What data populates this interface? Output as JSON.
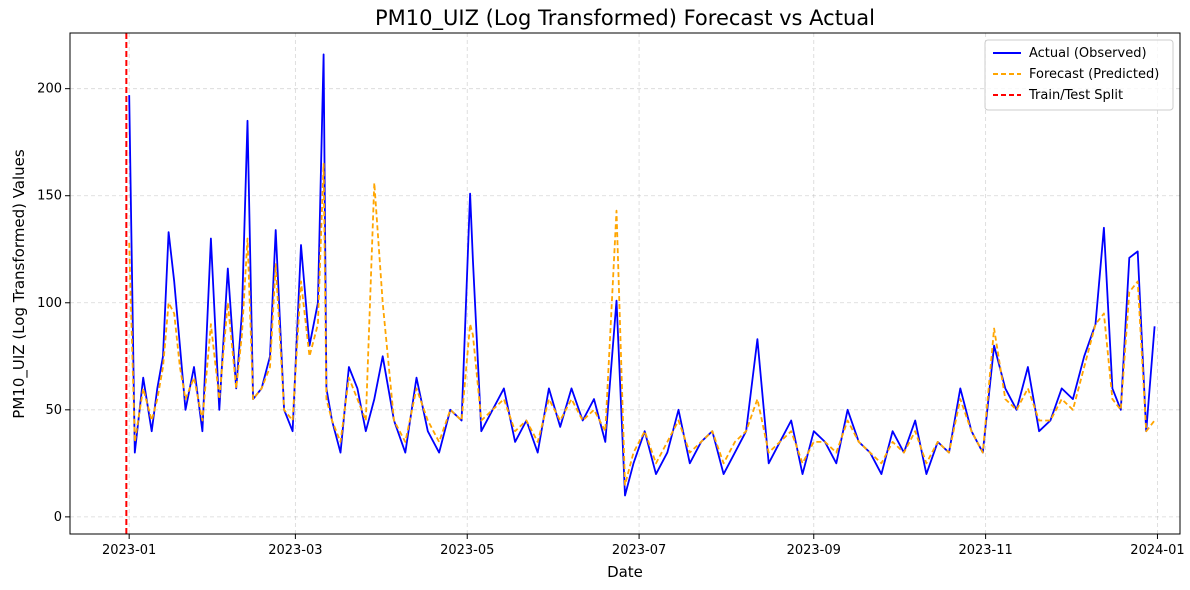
{
  "chart_data": {
    "type": "line",
    "title": "PM10_UIZ (Log Transformed) Forecast vs Actual",
    "xlabel": "Date",
    "ylabel": "PM10_UIZ (Log Transformed) Values",
    "xlim": [
      "2022-12-11",
      "2024-01-09"
    ],
    "ylim": [
      -8,
      226
    ],
    "x_ticks": [
      "2023-01",
      "2023-03",
      "2023-05",
      "2023-07",
      "2023-09",
      "2023-11",
      "2024-01"
    ],
    "y_ticks": [
      0,
      50,
      100,
      150,
      200
    ],
    "grid": true,
    "legend_position": "upper-right",
    "split_date": "2022-12-31",
    "series": [
      {
        "name": "Actual (Observed)",
        "color": "#0000ff",
        "style": "solid",
        "x": [
          "2023-01-01",
          "2023-01-03",
          "2023-01-06",
          "2023-01-09",
          "2023-01-11",
          "2023-01-13",
          "2023-01-15",
          "2023-01-17",
          "2023-01-19",
          "2023-01-21",
          "2023-01-24",
          "2023-01-27",
          "2023-01-30",
          "2023-02-02",
          "2023-02-05",
          "2023-02-08",
          "2023-02-10",
          "2023-02-12",
          "2023-02-14",
          "2023-02-17",
          "2023-02-20",
          "2023-02-22",
          "2023-02-25",
          "2023-02-28",
          "2023-03-03",
          "2023-03-06",
          "2023-03-09",
          "2023-03-11",
          "2023-03-12",
          "2023-03-14",
          "2023-03-17",
          "2023-03-20",
          "2023-03-23",
          "2023-03-26",
          "2023-03-29",
          "2023-04-01",
          "2023-04-05",
          "2023-04-09",
          "2023-04-13",
          "2023-04-17",
          "2023-04-21",
          "2023-04-25",
          "2023-04-29",
          "2023-05-02",
          "2023-05-03",
          "2023-05-06",
          "2023-05-10",
          "2023-05-14",
          "2023-05-18",
          "2023-05-22",
          "2023-05-26",
          "2023-05-30",
          "2023-06-03",
          "2023-06-07",
          "2023-06-11",
          "2023-06-15",
          "2023-06-19",
          "2023-06-23",
          "2023-06-26",
          "2023-06-29",
          "2023-07-03",
          "2023-07-07",
          "2023-07-11",
          "2023-07-15",
          "2023-07-19",
          "2023-07-23",
          "2023-07-27",
          "2023-07-31",
          "2023-08-04",
          "2023-08-08",
          "2023-08-12",
          "2023-08-16",
          "2023-08-20",
          "2023-08-24",
          "2023-08-28",
          "2023-09-01",
          "2023-09-05",
          "2023-09-09",
          "2023-09-13",
          "2023-09-17",
          "2023-09-21",
          "2023-09-25",
          "2023-09-29",
          "2023-10-03",
          "2023-10-07",
          "2023-10-11",
          "2023-10-15",
          "2023-10-19",
          "2023-10-23",
          "2023-10-27",
          "2023-10-31",
          "2023-11-04",
          "2023-11-08",
          "2023-11-12",
          "2023-11-16",
          "2023-11-20",
          "2023-11-24",
          "2023-11-28",
          "2023-12-02",
          "2023-12-06",
          "2023-12-10",
          "2023-12-13",
          "2023-12-16",
          "2023-12-19",
          "2023-12-22",
          "2023-12-25",
          "2023-12-28",
          "2023-12-31"
        ],
        "y": [
          197,
          30,
          65,
          40,
          60,
          75,
          133,
          110,
          80,
          50,
          70,
          40,
          130,
          50,
          116,
          60,
          95,
          185,
          55,
          60,
          75,
          134,
          50,
          40,
          127,
          80,
          100,
          216,
          60,
          45,
          30,
          70,
          60,
          40,
          55,
          75,
          45,
          30,
          65,
          40,
          30,
          50,
          45,
          151,
          120,
          40,
          50,
          60,
          35,
          45,
          30,
          60,
          42,
          60,
          45,
          55,
          35,
          101,
          10,
          25,
          40,
          20,
          30,
          50,
          25,
          35,
          40,
          20,
          30,
          40,
          83,
          25,
          35,
          45,
          20,
          40,
          35,
          25,
          50,
          35,
          30,
          20,
          40,
          30,
          45,
          20,
          35,
          30,
          60,
          40,
          30,
          80,
          60,
          50,
          70,
          40,
          45,
          60,
          55,
          75,
          90,
          135,
          60,
          50,
          121,
          124,
          40,
          89
        ]
      },
      {
        "name": "Forecast (Predicted)",
        "color": "#ffa500",
        "style": "dashed",
        "x": [
          "2023-01-01",
          "2023-01-03",
          "2023-01-06",
          "2023-01-09",
          "2023-01-11",
          "2023-01-13",
          "2023-01-15",
          "2023-01-17",
          "2023-01-19",
          "2023-01-21",
          "2023-01-24",
          "2023-01-27",
          "2023-01-30",
          "2023-02-02",
          "2023-02-05",
          "2023-02-08",
          "2023-02-10",
          "2023-02-12",
          "2023-02-14",
          "2023-02-17",
          "2023-02-20",
          "2023-02-22",
          "2023-02-25",
          "2023-02-28",
          "2023-03-03",
          "2023-03-06",
          "2023-03-09",
          "2023-03-11",
          "2023-03-12",
          "2023-03-14",
          "2023-03-17",
          "2023-03-20",
          "2023-03-23",
          "2023-03-26",
          "2023-03-29",
          "2023-04-01",
          "2023-04-05",
          "2023-04-09",
          "2023-04-13",
          "2023-04-17",
          "2023-04-21",
          "2023-04-25",
          "2023-04-29",
          "2023-05-02",
          "2023-05-03",
          "2023-05-06",
          "2023-05-10",
          "2023-05-14",
          "2023-05-18",
          "2023-05-22",
          "2023-05-26",
          "2023-05-30",
          "2023-06-03",
          "2023-06-07",
          "2023-06-11",
          "2023-06-15",
          "2023-06-19",
          "2023-06-23",
          "2023-06-26",
          "2023-06-29",
          "2023-07-03",
          "2023-07-07",
          "2023-07-11",
          "2023-07-15",
          "2023-07-19",
          "2023-07-23",
          "2023-07-27",
          "2023-07-31",
          "2023-08-04",
          "2023-08-08",
          "2023-08-12",
          "2023-08-16",
          "2023-08-20",
          "2023-08-24",
          "2023-08-28",
          "2023-09-01",
          "2023-09-05",
          "2023-09-09",
          "2023-09-13",
          "2023-09-17",
          "2023-09-21",
          "2023-09-25",
          "2023-09-29",
          "2023-10-03",
          "2023-10-07",
          "2023-10-11",
          "2023-10-15",
          "2023-10-19",
          "2023-10-23",
          "2023-10-27",
          "2023-10-31",
          "2023-11-04",
          "2023-11-08",
          "2023-11-12",
          "2023-11-16",
          "2023-11-20",
          "2023-11-24",
          "2023-11-28",
          "2023-12-02",
          "2023-12-06",
          "2023-12-10",
          "2023-12-13",
          "2023-12-16",
          "2023-12-19",
          "2023-12-22",
          "2023-12-25",
          "2023-12-28",
          "2023-12-31"
        ],
        "y": [
          128,
          35,
          60,
          45,
          55,
          70,
          100,
          95,
          70,
          55,
          65,
          45,
          90,
          55,
          100,
          60,
          85,
          130,
          55,
          60,
          70,
          118,
          50,
          45,
          110,
          75,
          90,
          165,
          55,
          45,
          35,
          65,
          55,
          45,
          156,
          100,
          45,
          35,
          60,
          45,
          35,
          50,
          45,
          90,
          85,
          45,
          50,
          55,
          40,
          45,
          35,
          55,
          45,
          55,
          45,
          50,
          40,
          143,
          15,
          30,
          40,
          25,
          35,
          45,
          30,
          35,
          40,
          25,
          35,
          40,
          55,
          30,
          35,
          40,
          25,
          35,
          35,
          30,
          45,
          35,
          30,
          25,
          35,
          30,
          40,
          25,
          35,
          30,
          55,
          40,
          30,
          88,
          55,
          50,
          60,
          45,
          45,
          55,
          50,
          70,
          90,
          95,
          55,
          50,
          105,
          110,
          40,
          45
        ]
      },
      {
        "name": "Train/Test Split",
        "color": "#ff0000",
        "style": "dashed"
      }
    ]
  }
}
